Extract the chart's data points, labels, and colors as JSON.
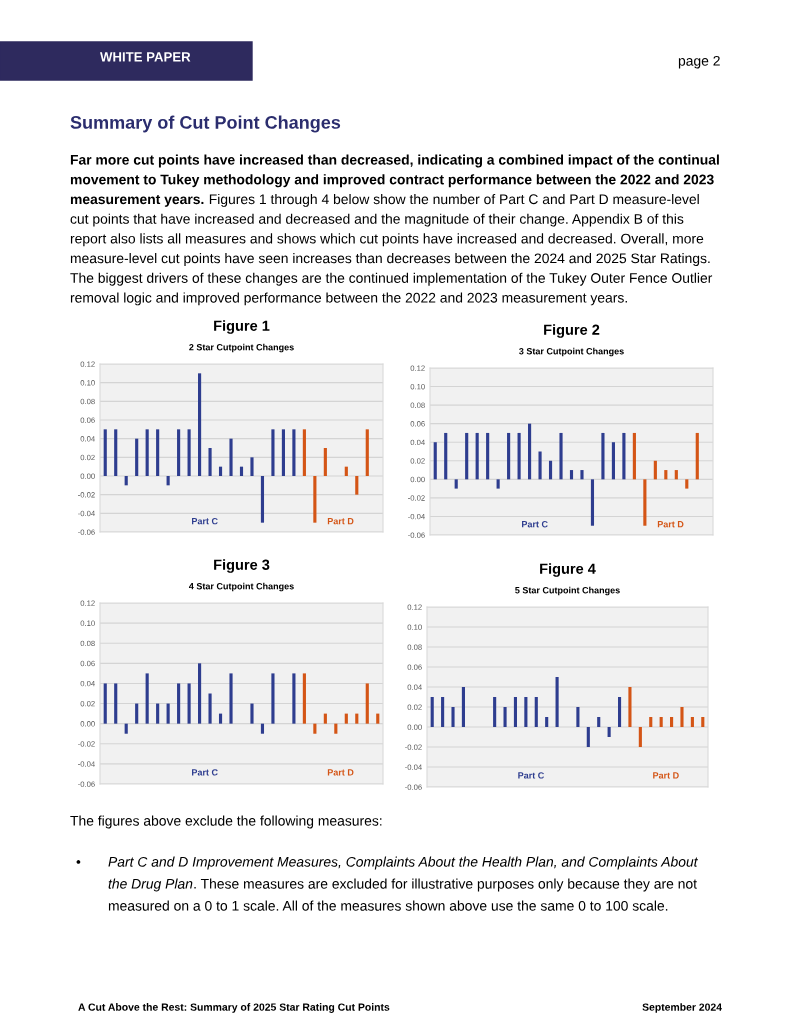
{
  "chart_data": [
    {
      "type": "other",
      "title": "Summary of Cut Point Changes",
      "annotations": [
        "WHITE PAPER",
        "page 2",
        "Far more cut points have increased than decreased, indicating a combined impact of the continual",
        "movement to Tukey methodology and improved contract performance between the 2022 and 2023",
        "measurement years.",
        "Figures 1 through 4 below show the number of Part C and Part D measure-level",
        "cut points that have increased and decreased and the magnitude of their change. Appendix B of this\nreport also lists all measures and shows which cut points have increased and decreased. Overall, more\nmeasure-level cut points have seen increases than decreases between the 2024 and 2025 Star Ratings.\nThe biggest drivers of these changes are the continued implementation of the Tukey Outer Fence Outlier\nremoval logic and improved performance between the 2022 and 2023 measurement years.",
        "The figures above exclude the following measures:",
        "•",
        "Part C and D Improvement Measures, Complaints About the Health Plan, and Complaints About\nthe Drug Plan",
        ". These measures are excluded for illustrative purposes only because they are not",
        "measured on a 0 to 1 scale. All of the measures shown above use the same 0 to 100 scale.",
        "A Cut Above the Rest: Summary of 2025 Star Rating Cut Points",
        "September 2024"
      ]
    },
    {
      "type": "bar",
      "title": "2 Star Cutpoint Changes",
      "annotations": [
        "Figure 1",
        "Part C",
        "Part D"
      ],
      "categories": [
        null,
        null,
        null,
        null,
        null,
        null,
        null,
        null,
        null,
        null,
        null,
        null,
        null,
        null,
        null,
        null,
        null,
        null,
        null,
        null,
        null,
        null,
        null,
        null,
        null,
        null,
        null
      ],
      "values": [
        0.05,
        0.05,
        -0.01,
        0.04,
        0.05,
        0.05,
        -0.01,
        0.05,
        0.05,
        0.11,
        0.03,
        0.01,
        0.04,
        0.01,
        0.02,
        -0.05,
        0.05,
        0.05,
        0.05,
        0.05,
        -0.05,
        0.03,
        0,
        0.01,
        -0.02,
        0.05,
        0
      ],
      "colors": [
        "#2e3d8f",
        "#2e3d8f",
        "#2e3d8f",
        "#2e3d8f",
        "#2e3d8f",
        "#2e3d8f",
        "#2e3d8f",
        "#2e3d8f",
        "#2e3d8f",
        "#2e3d8f",
        "#2e3d8f",
        "#2e3d8f",
        "#2e3d8f",
        "#2e3d8f",
        "#2e3d8f",
        "#2e3d8f",
        "#2e3d8f",
        "#2e3d8f",
        "#2e3d8f",
        "#d45516",
        "#d45516",
        "#d45516",
        "#d45516",
        "#d45516",
        "#d45516",
        "#d45516",
        "#d45516"
      ],
      "ylim": [
        -0.06,
        0.12
      ],
      "yticks": [
        {
          "value": -0.06,
          "label": "-0.06"
        },
        {
          "value": -0.04,
          "label": "-0.04"
        },
        {
          "value": -0.02,
          "label": "-0.02"
        },
        {
          "value": 0,
          "label": "0.00"
        },
        {
          "value": 0.02,
          "label": "0.02"
        },
        {
          "value": 0.04,
          "label": "0.04"
        },
        {
          "value": 0.06,
          "label": "0.06"
        },
        {
          "value": 0.08,
          "label": "0.08"
        },
        {
          "value": 0.1,
          "label": "0.10"
        },
        {
          "value": 0.12,
          "label": "0.12"
        }
      ],
      "grid": "y",
      "legend": false
    },
    {
      "type": "bar",
      "title": "3 Star Cutpoint Changes",
      "annotations": [
        "Figure 2",
        "Part C",
        "Part D"
      ],
      "categories": [
        null,
        null,
        null,
        null,
        null,
        null,
        null,
        null,
        null,
        null,
        null,
        null,
        null,
        null,
        null,
        null,
        null,
        null,
        null,
        null,
        null,
        null,
        null,
        null,
        null,
        null,
        null
      ],
      "values": [
        0.04,
        0.05,
        -0.01,
        0.05,
        0.05,
        0.05,
        -0.01,
        0.05,
        0.05,
        0.06,
        0.03,
        0.02,
        0.05,
        0.01,
        0.01,
        -0.05,
        0.05,
        0.04,
        0.05,
        0.05,
        -0.05,
        0.02,
        0.01,
        0.01,
        -0.01,
        0.05,
        0
      ],
      "colors": [
        "#2e3d8f",
        "#2e3d8f",
        "#2e3d8f",
        "#2e3d8f",
        "#2e3d8f",
        "#2e3d8f",
        "#2e3d8f",
        "#2e3d8f",
        "#2e3d8f",
        "#2e3d8f",
        "#2e3d8f",
        "#2e3d8f",
        "#2e3d8f",
        "#2e3d8f",
        "#2e3d8f",
        "#2e3d8f",
        "#2e3d8f",
        "#2e3d8f",
        "#2e3d8f",
        "#d45516",
        "#d45516",
        "#d45516",
        "#d45516",
        "#d45516",
        "#d45516",
        "#d45516",
        "#d45516"
      ],
      "ylim": [
        -0.06,
        0.12
      ],
      "yticks": [
        {
          "value": -0.06,
          "label": "-0.06"
        },
        {
          "value": -0.04,
          "label": "-0.04"
        },
        {
          "value": -0.02,
          "label": "-0.02"
        },
        {
          "value": 0,
          "label": "0.00"
        },
        {
          "value": 0.02,
          "label": "0.02"
        },
        {
          "value": 0.04,
          "label": "0.04"
        },
        {
          "value": 0.06,
          "label": "0.06"
        },
        {
          "value": 0.08,
          "label": "0.08"
        },
        {
          "value": 0.1,
          "label": "0.10"
        },
        {
          "value": 0.12,
          "label": "0.12"
        }
      ],
      "grid": "y",
      "legend": false
    },
    {
      "type": "bar",
      "title": "4 Star Cutpoint Changes",
      "annotations": [
        "Figure 3",
        "Part C",
        "Part D"
      ],
      "categories": [
        null,
        null,
        null,
        null,
        null,
        null,
        null,
        null,
        null,
        null,
        null,
        null,
        null,
        null,
        null,
        null,
        null,
        null,
        null,
        null,
        null,
        null,
        null,
        null,
        null,
        null,
        null
      ],
      "values": [
        0.04,
        0.04,
        -0.01,
        0.02,
        0.05,
        0.02,
        0.02,
        0.04,
        0.04,
        0.06,
        0.03,
        0.01,
        0.05,
        0,
        0.02,
        -0.01,
        0.05,
        0,
        0.05,
        0.05,
        -0.01,
        0.01,
        -0.01,
        0.01,
        0.01,
        0.04,
        0.01
      ],
      "colors": [
        "#2e3d8f",
        "#2e3d8f",
        "#2e3d8f",
        "#2e3d8f",
        "#2e3d8f",
        "#2e3d8f",
        "#2e3d8f",
        "#2e3d8f",
        "#2e3d8f",
        "#2e3d8f",
        "#2e3d8f",
        "#2e3d8f",
        "#2e3d8f",
        "#2e3d8f",
        "#2e3d8f",
        "#2e3d8f",
        "#2e3d8f",
        "#2e3d8f",
        "#2e3d8f",
        "#d45516",
        "#d45516",
        "#d45516",
        "#d45516",
        "#d45516",
        "#d45516",
        "#d45516",
        "#d45516"
      ],
      "ylim": [
        -0.06,
        0.12
      ],
      "yticks": [
        {
          "value": -0.06,
          "label": "-0.06"
        },
        {
          "value": -0.04,
          "label": "-0.04"
        },
        {
          "value": -0.02,
          "label": "-0.02"
        },
        {
          "value": 0,
          "label": "0.00"
        },
        {
          "value": 0.02,
          "label": "0.02"
        },
        {
          "value": 0.04,
          "label": "0.04"
        },
        {
          "value": 0.06,
          "label": "0.06"
        },
        {
          "value": 0.08,
          "label": "0.08"
        },
        {
          "value": 0.1,
          "label": "0.10"
        },
        {
          "value": 0.12,
          "label": "0.12"
        }
      ],
      "grid": "y",
      "legend": false
    },
    {
      "type": "bar",
      "title": "5 Star Cutpoint Changes",
      "annotations": [
        "Figure 4",
        "Part C",
        "Part D"
      ],
      "categories": [
        null,
        null,
        null,
        null,
        null,
        null,
        null,
        null,
        null,
        null,
        null,
        null,
        null,
        null,
        null,
        null,
        null,
        null,
        null,
        null,
        null,
        null,
        null,
        null,
        null,
        null,
        null
      ],
      "values": [
        0.03,
        0.03,
        0.02,
        0.04,
        0,
        0,
        0.03,
        0.02,
        0.03,
        0.03,
        0.03,
        0.01,
        0.05,
        0,
        0.02,
        -0.02,
        0.01,
        -0.01,
        0.03,
        0.04,
        -0.02,
        0.01,
        0.01,
        0.01,
        0.02,
        0.01,
        0.01
      ],
      "colors": [
        "#2e3d8f",
        "#2e3d8f",
        "#2e3d8f",
        "#2e3d8f",
        "#2e3d8f",
        "#2e3d8f",
        "#2e3d8f",
        "#2e3d8f",
        "#2e3d8f",
        "#2e3d8f",
        "#2e3d8f",
        "#2e3d8f",
        "#2e3d8f",
        "#2e3d8f",
        "#2e3d8f",
        "#2e3d8f",
        "#2e3d8f",
        "#2e3d8f",
        "#2e3d8f",
        "#d45516",
        "#d45516",
        "#d45516",
        "#d45516",
        "#d45516",
        "#d45516",
        "#d45516",
        "#d45516"
      ],
      "ylim": [
        -0.06,
        0.12
      ],
      "yticks": [
        {
          "value": -0.06,
          "label": "-0.06"
        },
        {
          "value": -0.04,
          "label": "-0.04"
        },
        {
          "value": -0.02,
          "label": "-0.02"
        },
        {
          "value": 0,
          "label": "0.00"
        },
        {
          "value": 0.02,
          "label": "0.02"
        },
        {
          "value": 0.04,
          "label": "0.04"
        },
        {
          "value": 0.06,
          "label": "0.06"
        },
        {
          "value": 0.08,
          "label": "0.08"
        },
        {
          "value": 0.1,
          "label": "0.10"
        },
        {
          "value": 0.12,
          "label": "0.12"
        }
      ],
      "grid": "y",
      "legend": false
    }
  ]
}
